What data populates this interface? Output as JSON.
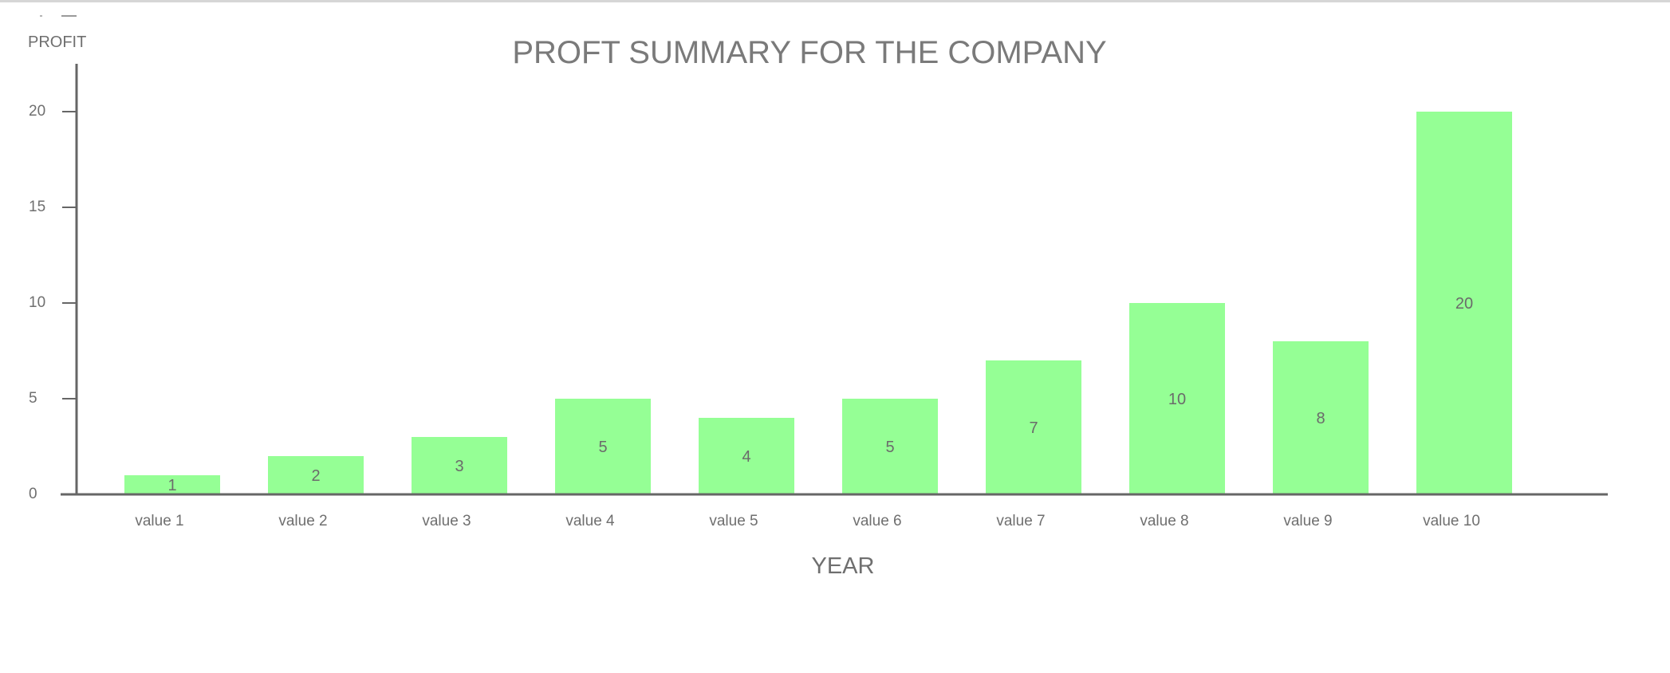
{
  "chart_data": {
    "type": "bar",
    "title": "PROFT SUMMARY FOR THE COMPANY",
    "xlabel": "YEAR",
    "ylabel": "PROFIT",
    "categories": [
      "value 1",
      "value 2",
      "value 3",
      "value 4",
      "value 5",
      "value 6",
      "value 7",
      "value 8",
      "value 9",
      "value 10"
    ],
    "values": [
      1,
      2,
      3,
      5,
      4,
      5,
      7,
      10,
      8,
      20
    ],
    "ylim": [
      0,
      20
    ],
    "yticks": [
      "0",
      "5",
      "10",
      "15",
      "20"
    ],
    "grid": false,
    "legend": "none",
    "bar_color": "#95ff95",
    "axis_color": "#666666",
    "text_color": "#6f6f6f"
  }
}
